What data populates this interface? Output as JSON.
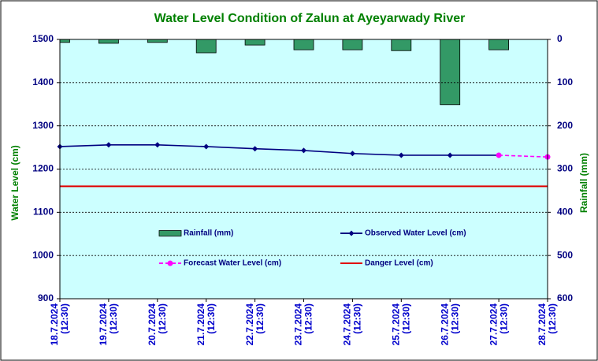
{
  "chart_data": {
    "type": "combo",
    "title": "Water Level Condition of Zalun at Ayeyarwady River",
    "ylabel": "Water Level (cm)",
    "y2label": "Rainfall (mm)",
    "categories": [
      [
        "18.7.2024",
        "(12:30)"
      ],
      [
        "19.7.2024",
        "(12:30)"
      ],
      [
        "20.7.2024",
        "(12:30)"
      ],
      [
        "21.7.2024",
        "(12:30)"
      ],
      [
        "22.7.2024",
        "(12:30)"
      ],
      [
        "23.7.2024",
        "(12:30)"
      ],
      [
        "24.7.2024",
        "(12:30)"
      ],
      [
        "25.7.2024",
        "(12:30)"
      ],
      [
        "26.7.2024",
        "(12:30)"
      ],
      [
        "27.7.2024",
        "(12:30)"
      ],
      [
        "28.7.2024",
        "(12:30)"
      ]
    ],
    "ylim": [
      900,
      1500
    ],
    "yticks": [
      900,
      1000,
      1100,
      1200,
      1300,
      1400,
      1500
    ],
    "y2lim": [
      0,
      600
    ],
    "y2ticks": [
      0,
      100,
      200,
      300,
      400,
      500,
      600
    ],
    "y2_inverted": true,
    "grid": true,
    "series": [
      {
        "name": "Rainfall (mm)",
        "type": "bar",
        "axis": "y2",
        "color": "#339966",
        "values": [
          7,
          9,
          7,
          31,
          13,
          24,
          24,
          26,
          151,
          24,
          null
        ]
      },
      {
        "name": "Observed Water Level (cm)",
        "type": "line",
        "color": "#000080",
        "marker": "diamond",
        "values": [
          1252,
          1256,
          1256,
          1252,
          1247,
          1243,
          1236,
          1232,
          1232,
          1232,
          null
        ]
      },
      {
        "name": "Forecast Water Level (cm)",
        "type": "line",
        "color": "#ff00ff",
        "marker": "circle",
        "dashed": true,
        "values": [
          null,
          null,
          null,
          null,
          null,
          null,
          null,
          null,
          null,
          1232,
          1228
        ]
      },
      {
        "name": "Danger Level (cm)",
        "type": "line",
        "color": "#e00000",
        "values": [
          1160,
          1160,
          1160,
          1160,
          1160,
          1160,
          1160,
          1160,
          1160,
          1160,
          1160
        ]
      }
    ]
  }
}
